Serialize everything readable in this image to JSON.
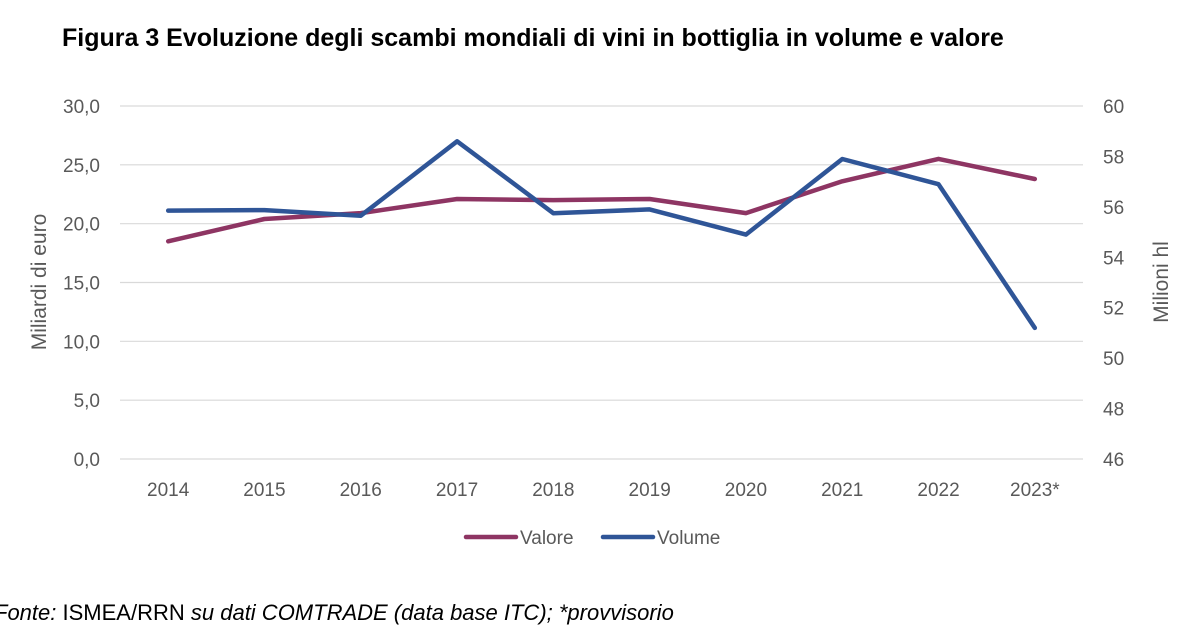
{
  "title": "Figura 3 Evoluzione degli scambi mondiali di vini in bottiglia in volume e valore",
  "source": {
    "label": "Fonte:",
    "org": "ISMEA/RRN",
    "text": "su dati COMTRADE (data base ITC); *provvisorio"
  },
  "colors": {
    "valore": "#8E3563",
    "volume": "#2F5597",
    "grid": "#D9D9D9",
    "axis_text": "#595959"
  },
  "chart_data": {
    "type": "line",
    "categories": [
      "2014",
      "2015",
      "2016",
      "2017",
      "2018",
      "2019",
      "2020",
      "2021",
      "2022",
      "2023*"
    ],
    "ylabel": "Miliardi di euro",
    "y2label": "Milioni hl",
    "ylim": [
      0,
      30
    ],
    "y2lim": [
      46,
      60
    ],
    "yticks": [
      "0,0",
      "5,0",
      "10,0",
      "15,0",
      "20,0",
      "25,0",
      "30,0"
    ],
    "y2ticks": [
      "46",
      "48",
      "50",
      "52",
      "54",
      "56",
      "58",
      "60"
    ],
    "grid": true,
    "legend_position": "bottom",
    "series": [
      {
        "name": "Valore",
        "axis": "left",
        "values": [
          18.5,
          20.4,
          20.9,
          22.1,
          22.0,
          22.1,
          20.9,
          23.6,
          25.5,
          23.8
        ]
      },
      {
        "name": "Volume",
        "axis": "right",
        "values": [
          55.85,
          55.87,
          55.65,
          58.6,
          55.75,
          55.9,
          54.9,
          57.9,
          56.9,
          51.2
        ]
      }
    ]
  }
}
